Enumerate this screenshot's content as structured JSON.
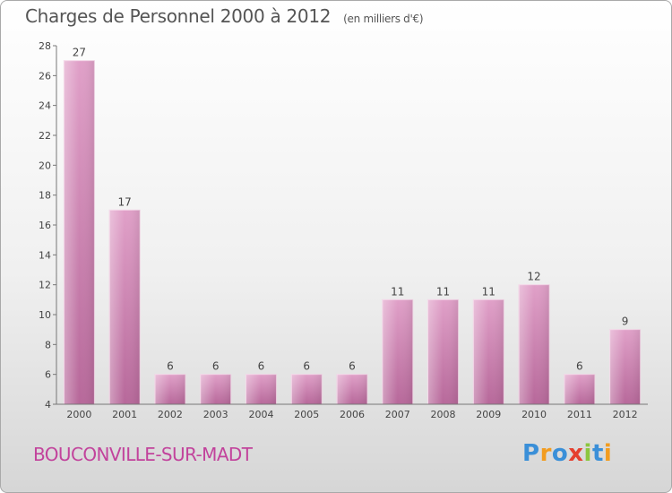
{
  "header": {
    "title": "Charges de Personnel 2000 à 2012",
    "unit": "(en milliers d'€)"
  },
  "footer": {
    "town": "BOUCONVILLE-SUR-MADT",
    "logo": {
      "letters": [
        "P",
        "r",
        "o",
        "x",
        "i",
        "t",
        "i"
      ],
      "colors": [
        "#3a8fd8",
        "#f29c1f",
        "#3a8fd8",
        "#e5402f",
        "#8cc63f",
        "#3a8fd8",
        "#f29c1f"
      ]
    }
  },
  "chart_data": {
    "type": "bar",
    "categories": [
      "2000",
      "2001",
      "2002",
      "2003",
      "2004",
      "2005",
      "2006",
      "2007",
      "2008",
      "2009",
      "2010",
      "2011",
      "2012"
    ],
    "values": [
      27,
      17,
      6,
      6,
      6,
      6,
      6,
      11,
      11,
      11,
      12,
      6,
      9
    ],
    "title": "Charges de Personnel 2000 à 2012",
    "xlabel": "",
    "ylabel": "",
    "ylim": [
      4,
      28
    ],
    "yticks": [
      4,
      6,
      8,
      10,
      12,
      14,
      16,
      18,
      20,
      22,
      24,
      26,
      28
    ],
    "grid": false,
    "legend": "none",
    "bar_color": "#e0a0c8",
    "bar_color_dark": "#b7689a"
  }
}
